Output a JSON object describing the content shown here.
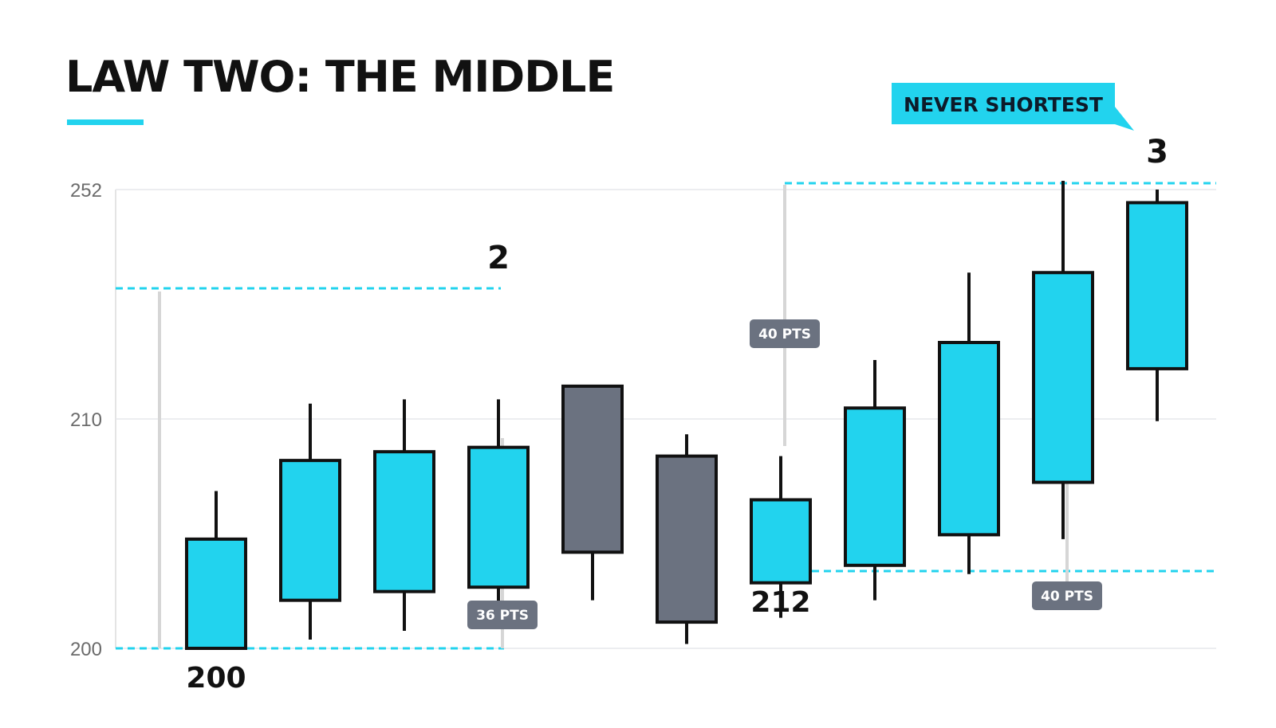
{
  "title": "LAW TWO: THE MIDDLE",
  "colors": {
    "accent": "#22d3ee",
    "bearish": "#6b7280",
    "outline": "#111111",
    "grid": "#e5e7eb",
    "badge": "#6b7280"
  },
  "callout": {
    "text": "NEVER SHORTEST",
    "color": "#22d3ee"
  },
  "chart_data": {
    "type": "candlestick",
    "title": "LAW TWO: THE MIDDLE",
    "y_ticks": [
      "252",
      "210",
      "200"
    ],
    "grid": true,
    "candles": [
      {
        "open": 200,
        "close": 225,
        "high": 236,
        "low": 200,
        "color": "accent"
      },
      {
        "open": 211,
        "close": 243,
        "high": 256,
        "low": 202,
        "color": "accent"
      },
      {
        "open": 213,
        "close": 245,
        "high": 257,
        "low": 204,
        "color": "accent"
      },
      {
        "open": 214,
        "close": 246,
        "high": 257,
        "low": 210,
        "color": "accent"
      },
      {
        "open": 260,
        "close": 222,
        "high": 260,
        "low": 211,
        "color": "bearish"
      },
      {
        "open": 244,
        "close": 206,
        "high": 249,
        "low": 201,
        "color": "bearish"
      },
      {
        "open": 215,
        "close": 234,
        "high": 244,
        "low": 207,
        "color": "accent"
      },
      {
        "open": 219,
        "close": 255,
        "high": 266,
        "low": 211,
        "color": "accent"
      },
      {
        "open": 226,
        "close": 270,
        "high": 286,
        "low": 217,
        "color": "accent"
      },
      {
        "open": 238,
        "close": 286,
        "high": 307,
        "low": 225,
        "color": "accent"
      },
      {
        "open": 264,
        "close": 302,
        "high": 305,
        "low": 252,
        "color": "accent"
      }
    ],
    "wave_labels": [
      {
        "text": "200",
        "candle": 0
      },
      {
        "text": "2",
        "candle": 3
      },
      {
        "text": "212",
        "candle": 6
      },
      {
        "text": "3",
        "candle": 10
      }
    ],
    "measurements": [
      {
        "label": "36 PTS",
        "from": 200,
        "to": 236
      },
      {
        "label": "40 PTS",
        "from": 212,
        "to": 252
      },
      {
        "label": "40 PTS",
        "from": 212,
        "to": 252
      }
    ]
  }
}
